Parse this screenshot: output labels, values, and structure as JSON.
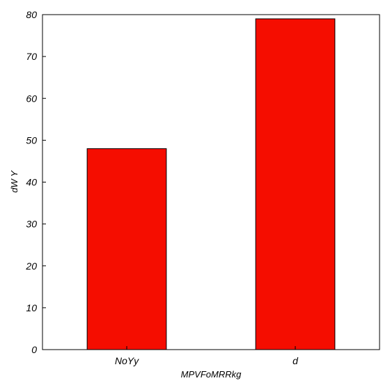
{
  "chart_data": {
    "type": "bar",
    "categories": [
      "NoYy",
      "d"
    ],
    "values": [
      48,
      79
    ],
    "xlabel": "MPVFoMRRkg",
    "ylabel": "dW Y",
    "ylim": [
      0,
      80
    ],
    "yticks": [
      0,
      10,
      20,
      30,
      40,
      50,
      60,
      70,
      80
    ],
    "grid": false,
    "bar_color": "#f50d00",
    "edge_color": "#000000"
  }
}
